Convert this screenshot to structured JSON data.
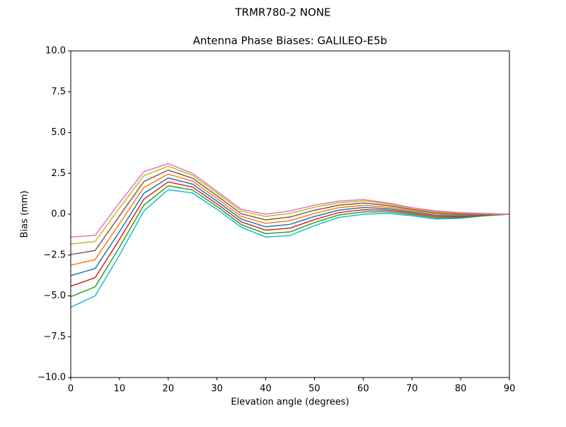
{
  "chart_data": {
    "type": "line",
    "suptitle": "TRMR780-2       NONE",
    "title": "Antenna Phase Biases: GALILEO-E5b",
    "xlabel": "Elevation angle (degrees)",
    "ylabel": "Bias (mm)",
    "x": [
      0,
      5,
      10,
      15,
      20,
      25,
      30,
      35,
      40,
      45,
      50,
      55,
      60,
      65,
      70,
      75,
      80,
      85,
      90
    ],
    "series": [
      {
        "color": "#17becf",
        "values": [
          -5.7,
          -5.0,
          -2.5,
          0.2,
          1.5,
          1.3,
          0.3,
          -0.8,
          -1.4,
          -1.3,
          -0.7,
          -0.2,
          0.0,
          0.05,
          -0.1,
          -0.3,
          -0.25,
          -0.1,
          0
        ]
      },
      {
        "color": "#2ca02c",
        "values": [
          -5.05,
          -4.45,
          -2.02,
          0.56,
          1.74,
          1.48,
          0.47,
          -0.64,
          -1.19,
          -1.08,
          -0.51,
          -0.05,
          0.14,
          0.15,
          -0.03,
          -0.23,
          -0.2,
          -0.08,
          0
        ]
      },
      {
        "color": "#d62728",
        "values": [
          -4.41,
          -3.89,
          -1.54,
          0.92,
          1.98,
          1.66,
          0.63,
          -0.47,
          -0.98,
          -0.85,
          -0.33,
          0.1,
          0.27,
          0.25,
          0.05,
          -0.15,
          -0.15,
          -0.05,
          0
        ]
      },
      {
        "color": "#1f77b4",
        "values": [
          -3.76,
          -3.33,
          -1.06,
          1.28,
          2.22,
          1.84,
          0.8,
          -0.3,
          -0.77,
          -0.62,
          -0.14,
          0.25,
          0.41,
          0.34,
          0.13,
          -0.07,
          -0.09,
          -0.03,
          0
        ]
      },
      {
        "color": "#ff7f0e",
        "values": [
          -3.12,
          -2.78,
          -0.58,
          1.64,
          2.46,
          2.02,
          0.96,
          -0.14,
          -0.56,
          -0.4,
          0.05,
          0.4,
          0.54,
          0.44,
          0.2,
          0,
          -0.04,
          -0.01,
          0
        ]
      },
      {
        "color": "#8c564b",
        "values": [
          -2.47,
          -2.22,
          -0.1,
          2.0,
          2.7,
          2.2,
          1.13,
          0.03,
          -0.35,
          -0.17,
          0.24,
          0.55,
          0.68,
          0.54,
          0.28,
          0.08,
          0.01,
          0.01,
          0
        ]
      },
      {
        "color": "#bcbd22",
        "values": [
          -1.83,
          -1.67,
          0.38,
          2.36,
          2.94,
          2.38,
          1.29,
          0.19,
          -0.14,
          0.05,
          0.43,
          0.7,
          0.81,
          0.64,
          0.35,
          0.15,
          0.07,
          0.04,
          0
        ]
      },
      {
        "color": "#e377c2",
        "values": [
          -1.4,
          -1.3,
          0.7,
          2.6,
          3.1,
          2.5,
          1.4,
          0.3,
          0.0,
          0.2,
          0.55,
          0.8,
          0.9,
          0.7,
          0.4,
          0.2,
          0.1,
          0.05,
          0
        ]
      }
    ],
    "xlim": [
      0,
      90
    ],
    "xticks": [
      0,
      10,
      20,
      30,
      40,
      50,
      60,
      70,
      80,
      90
    ],
    "ylim": [
      -10,
      10
    ],
    "yticks": [
      {
        "value": -10,
        "label": "−10.0"
      },
      {
        "value": -7.5,
        "label": "−7.5"
      },
      {
        "value": -5,
        "label": "−5.0"
      },
      {
        "value": -2.5,
        "label": "−2.5"
      },
      {
        "value": 0,
        "label": "0.0"
      },
      {
        "value": 2.5,
        "label": "2.5"
      },
      {
        "value": 5,
        "label": "5.0"
      },
      {
        "value": 7.5,
        "label": "7.5"
      },
      {
        "value": 10,
        "label": "10.0"
      }
    ]
  }
}
